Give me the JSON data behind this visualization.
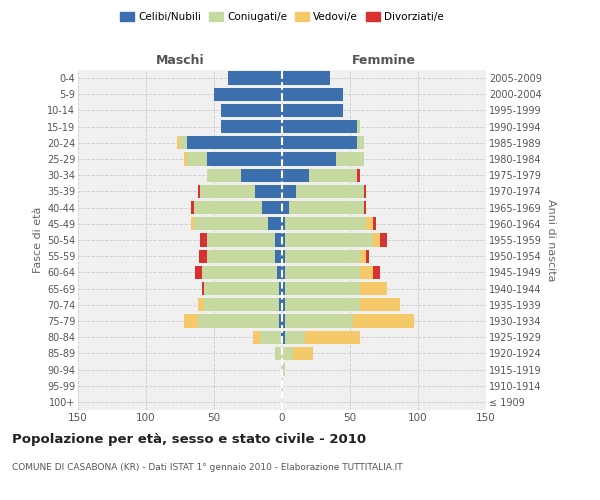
{
  "age_groups": [
    "100+",
    "95-99",
    "90-94",
    "85-89",
    "80-84",
    "75-79",
    "70-74",
    "65-69",
    "60-64",
    "55-59",
    "50-54",
    "45-49",
    "40-44",
    "35-39",
    "30-34",
    "25-29",
    "20-24",
    "15-19",
    "10-14",
    "5-9",
    "0-4"
  ],
  "birth_years": [
    "≤ 1909",
    "1910-1914",
    "1915-1919",
    "1920-1924",
    "1925-1929",
    "1930-1934",
    "1935-1939",
    "1940-1944",
    "1945-1949",
    "1950-1954",
    "1955-1959",
    "1960-1964",
    "1965-1969",
    "1970-1974",
    "1975-1979",
    "1980-1984",
    "1985-1989",
    "1990-1994",
    "1995-1999",
    "2000-2004",
    "2005-2009"
  ],
  "maschi": {
    "celibi": [
      0,
      0,
      0,
      0,
      1,
      2,
      2,
      2,
      4,
      5,
      5,
      10,
      15,
      20,
      30,
      55,
      70,
      45,
      45,
      50,
      40
    ],
    "coniugati": [
      0,
      0,
      1,
      5,
      15,
      60,
      55,
      55,
      55,
      50,
      50,
      55,
      50,
      40,
      25,
      15,
      5,
      0,
      0,
      0,
      0
    ],
    "vedovi": [
      0,
      0,
      0,
      0,
      5,
      10,
      5,
      0,
      0,
      0,
      0,
      2,
      0,
      0,
      0,
      2,
      2,
      0,
      0,
      0,
      0
    ],
    "divorziati": [
      0,
      0,
      0,
      0,
      0,
      0,
      0,
      2,
      5,
      6,
      5,
      0,
      2,
      2,
      0,
      0,
      0,
      0,
      0,
      0,
      0
    ]
  },
  "femmine": {
    "nubili": [
      0,
      0,
      0,
      0,
      2,
      2,
      2,
      2,
      2,
      2,
      2,
      2,
      5,
      10,
      20,
      40,
      55,
      55,
      45,
      45,
      35
    ],
    "coniugate": [
      0,
      1,
      2,
      8,
      15,
      50,
      55,
      55,
      55,
      55,
      65,
      60,
      55,
      50,
      35,
      20,
      5,
      2,
      0,
      0,
      0
    ],
    "vedove": [
      0,
      0,
      0,
      15,
      40,
      45,
      30,
      20,
      10,
      5,
      5,
      5,
      0,
      0,
      0,
      0,
      0,
      0,
      0,
      0,
      0
    ],
    "divorziate": [
      0,
      0,
      0,
      0,
      0,
      0,
      0,
      0,
      5,
      2,
      5,
      2,
      2,
      2,
      2,
      0,
      0,
      0,
      0,
      0,
      0
    ]
  },
  "colors": {
    "celibi": "#3c6fad",
    "coniugati": "#c5d9a0",
    "vedovi": "#f5c96a",
    "divorziati": "#d93030"
  },
  "xlim": 150,
  "title": "Popolazione per età, sesso e stato civile - 2010",
  "subtitle": "COMUNE DI CASABONA (KR) - Dati ISTAT 1° gennaio 2010 - Elaborazione TUTTITALIA.IT",
  "ylabel_left": "Fasce di età",
  "ylabel_right": "Anni di nascita",
  "legend_labels": [
    "Celibi/Nubili",
    "Coniugati/e",
    "Vedovi/e",
    "Divorziati/e"
  ],
  "maschi_label": "Maschi",
  "femmine_label": "Femmine",
  "background_color": "#f0f0f0",
  "grid_color": "#cccccc"
}
